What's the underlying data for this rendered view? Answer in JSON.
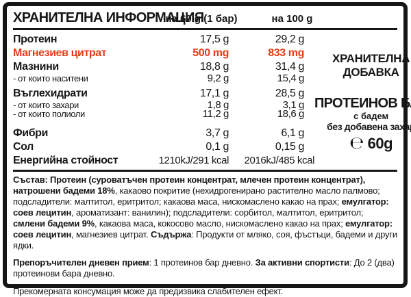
{
  "colors": {
    "accent": "#e43c14",
    "ink": "#161616"
  },
  "table": {
    "title": "ХРАНИТЕЛНА ИНФОРМАЦИЯ",
    "col_60": "на 60 g (1 бар)",
    "col_100": "на 100 g",
    "rows": [
      {
        "label": "Протеин",
        "v60": "17,5 g",
        "v100": "29,2 g"
      },
      {
        "label": "Магнезиев цитрат",
        "v60": "500 mg",
        "v100": "833 mg",
        "accent": true
      },
      {
        "label": "Мазнини",
        "v60": "18,8 g",
        "v100": "31,4 g"
      },
      {
        "label": "- от които наситени",
        "v60": "9,2 g",
        "v100": "15,4 g",
        "indent": true
      },
      {
        "label": "Въглехидрати",
        "v60": "17,1 g",
        "v100": "28,5 g",
        "gap": "sm"
      },
      {
        "label": "- от които захари",
        "v60": "1,8 g",
        "v100": "3,1 g",
        "indent": true
      },
      {
        "label": "- от които полиоли",
        "v60": "11,2 g",
        "v100": "18,6 g",
        "indent": true
      },
      {
        "label": "Фибри",
        "v60": "3,7 g",
        "v100": "6,1 g",
        "gap": "lg"
      },
      {
        "label": "Сол",
        "v60": "0,1 g",
        "v100": "0,15 g"
      },
      {
        "label": "Енергийна стойност",
        "v60": "1210kJ/291 kcal",
        "v100": "2016kJ/485 kcal",
        "energy": true
      }
    ]
  },
  "side": {
    "supplement": "ХРАНИТЕЛНА ДОБАВКА",
    "product": "ПРОТЕИНОВ БАР",
    "sub1": "с бадем",
    "sub2": "без добавена захар",
    "estimated_symbol": "℮",
    "net_weight": "60g"
  },
  "ingredients": {
    "segments": [
      {
        "b": true,
        "t": "Състав: Протеин (суроватъчен протеин концентрат, млечен протеин концентрат), натрошени бадеми 18%"
      },
      {
        "b": false,
        "t": ", какаово покритие (нехидрогенирано растително масло палмово; подсладители: малтитол, еритритол; какаова маса, нискомаслено какао на прах; "
      },
      {
        "b": true,
        "t": "емулгатор: соев лецитин"
      },
      {
        "b": false,
        "t": ", ароматизант: ванилин); подсладители: сорбитол, малтитол, еритритол; "
      },
      {
        "b": true,
        "t": "смлени бадеми 9%"
      },
      {
        "b": false,
        "t": ", какаова маса, кокосово масло, нискомаслено какао на прах; "
      },
      {
        "b": true,
        "t": "емулгатор: соев лецитин"
      },
      {
        "b": false,
        "t": ", магнезиев цитрат. "
      },
      {
        "b": true,
        "t": "Съдържа"
      },
      {
        "b": false,
        "t": ": Продукти от мляко, соя, фъстъци, бадеми и други ядки."
      }
    ]
  },
  "daily_intake": {
    "segments": [
      {
        "b": true,
        "t": "Препоръчителен дневен прием"
      },
      {
        "b": false,
        "t": ": 1 протеинов бар дневно. "
      },
      {
        "b": true,
        "t": "За активни спортисти"
      },
      {
        "b": false,
        "t": ": До 2 (два) протеинови бара дневно."
      }
    ]
  },
  "warning": "Прекомерната консумация може да предизвика слабителен ефект."
}
